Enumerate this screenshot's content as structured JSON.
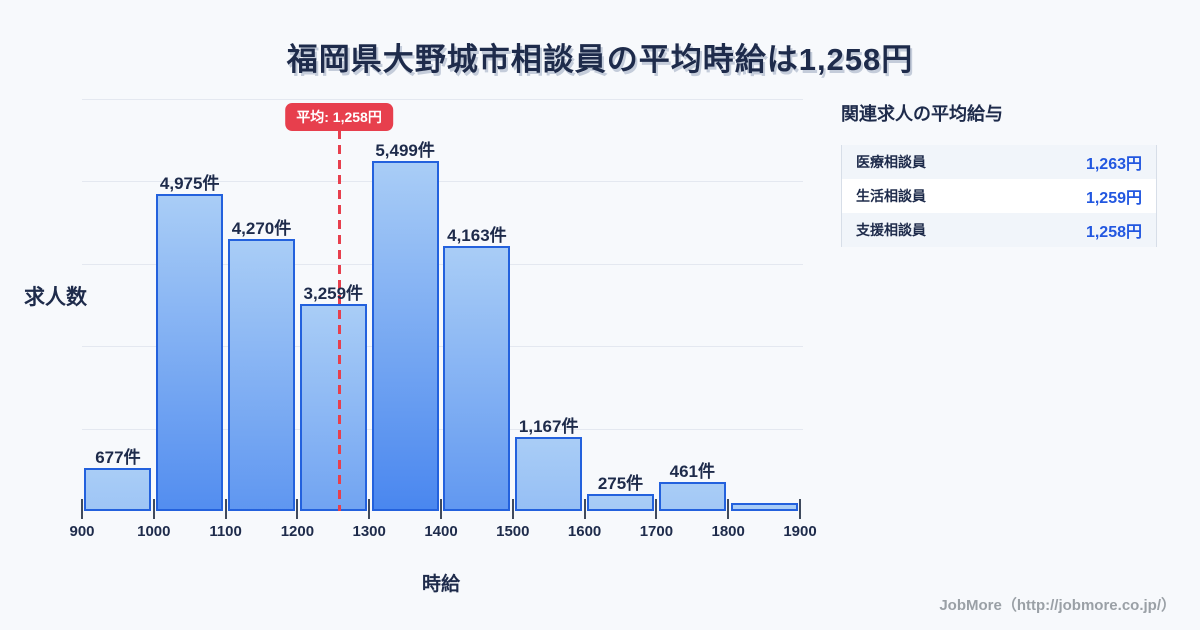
{
  "title": {
    "text": "福岡県大野城市相談員の平均時給は1,258円"
  },
  "chart_data": {
    "type": "bar",
    "title": "福岡県大野城市相談員の平均時給は1,258円",
    "xlabel": "時給",
    "ylabel": "求人数",
    "categories": [
      "900-1000",
      "1000-1100",
      "1100-1200",
      "1200-1300",
      "1300-1400",
      "1400-1500",
      "1500-1600",
      "1600-1700",
      "1700-1800",
      "1800-1900"
    ],
    "values": [
      677,
      4975,
      4270,
      3259,
      5499,
      4163,
      1167,
      275,
      461,
      125
    ],
    "bar_labels": [
      "677件",
      "4,975件",
      "4,270件",
      "3,259件",
      "5,499件",
      "4,163件",
      "1,167件",
      "275件",
      "461件",
      ""
    ],
    "x_ticks": [
      "900",
      "1000",
      "1100",
      "1200",
      "1300",
      "1400",
      "1500",
      "1600",
      "1700",
      "1800",
      "1900"
    ],
    "ylim": [
      0,
      6475
    ],
    "grid": true,
    "legend": "none",
    "average_line": {
      "value": 1258,
      "badge": "平均: 1,258円"
    },
    "colors": {
      "bar_fill_top": "#a9cdf6",
      "bar_fill_bottom": "#4a87ef",
      "bar_border": "#2361dd",
      "average_red": "#e73f4d",
      "gridline": "#e4e8f0",
      "text": "#1e2b4b"
    }
  },
  "related_panel": {
    "heading": "関連求人の平均給与",
    "rows": [
      {
        "label": "医療相談員",
        "value": "1,263円"
      },
      {
        "label": "生活相談員",
        "value": "1,259円"
      },
      {
        "label": "支援相談員",
        "value": "1,258円"
      }
    ],
    "value_color": "#2257e0"
  },
  "footer": {
    "credit": "JobMore（http://jobmore.co.jp/）"
  }
}
